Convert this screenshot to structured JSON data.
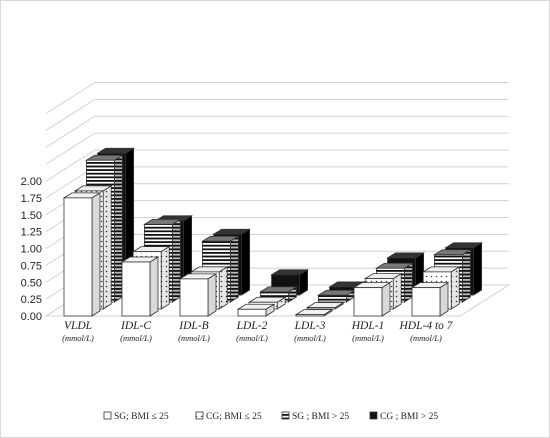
{
  "chart_data": {
    "type": "bar",
    "title": "",
    "xlabel": "",
    "ylabel": "",
    "ylim": [
      0,
      2
    ],
    "y_ticks": [
      "0.00",
      "0.25",
      "0.50",
      "0.75",
      "1.00",
      "1.25",
      "1.50",
      "1.75",
      "2.00"
    ],
    "grid": true,
    "legend_position": "bottom",
    "categories": [
      {
        "name": "VLDL",
        "unit": "(mmol/L)"
      },
      {
        "name": "IDL-C",
        "unit": "(mmol/L)"
      },
      {
        "name": "IDL-B",
        "unit": "(mmol/L)"
      },
      {
        "name": "LDL-2",
        "unit": "(mmol/L)"
      },
      {
        "name": "LDL-3",
        "unit": "(mmol/L)"
      },
      {
        "name": "HDL-1",
        "unit": "(mmol/L)"
      },
      {
        "name": "HDL-4 to 7",
        "unit": "(mmol/L)"
      }
    ],
    "series": [
      {
        "name": "SG; BMI ≤ 25",
        "pattern": "white",
        "values": [
          1.75,
          0.8,
          0.55,
          0.1,
          0.02,
          0.42,
          0.42
        ]
      },
      {
        "name": "CG; BMI ≤ 25",
        "pattern": "dotted",
        "values": [
          1.75,
          0.85,
          0.55,
          0.1,
          0.02,
          0.45,
          0.55
        ]
      },
      {
        "name": "SG ; BMI > 25",
        "pattern": "striped",
        "values": [
          2.1,
          1.15,
          0.9,
          0.15,
          0.1,
          0.5,
          0.7
        ]
      },
      {
        "name": "CG ; BMI > 25",
        "pattern": "black",
        "values": [
          2.1,
          1.1,
          0.9,
          0.3,
          0.12,
          0.55,
          0.7
        ]
      }
    ],
    "colors": {
      "fill_white": "#ffffff",
      "fill_black": "#111111",
      "outline": "#333333",
      "grid": "#d0d0d0"
    }
  }
}
